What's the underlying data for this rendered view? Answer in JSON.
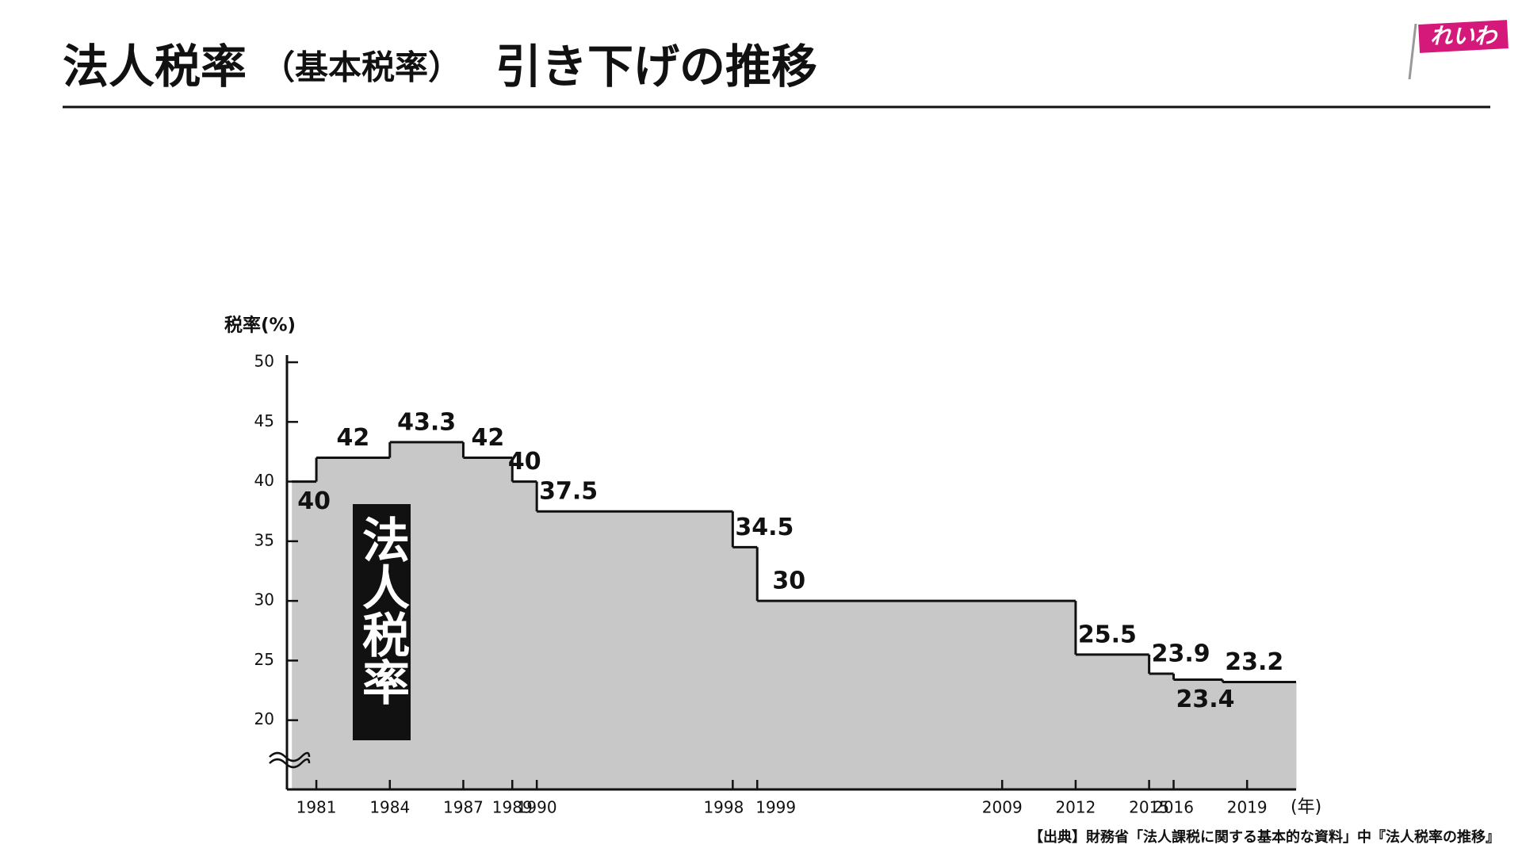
{
  "chart_data": {
    "type": "step",
    "title_main": "法人税率",
    "title_paren": "（基本税率）",
    "title_tail": "引き下げの推移",
    "logo": "れいわ",
    "y_label": "税率(%)",
    "x_unit": "(年)",
    "box_label": "法人税率",
    "source": "【出典】財務省「法人課税に関する基本的な資料」中『法人税率の推移』",
    "series": [
      {
        "name": "法人税率",
        "color": "#c8c8c8",
        "x": [
          1980,
          1981,
          1984,
          1987,
          1989,
          1990,
          1998,
          1999,
          2012,
          2015,
          2016,
          2018
        ],
        "values": [
          40,
          42,
          43.3,
          42,
          40,
          37.5,
          34.5,
          30,
          25.5,
          23.9,
          23.4,
          23.2
        ]
      }
    ],
    "xlim": [
      1979.8,
      2021
    ],
    "xticks": [
      1981,
      1984,
      1987,
      1989,
      1990,
      1998,
      1999,
      2009,
      2012,
      2015,
      2016,
      2019
    ],
    "ylim": [
      14.2,
      50.6
    ],
    "yticks": [
      20,
      25,
      30,
      35,
      40,
      45,
      50
    ]
  }
}
